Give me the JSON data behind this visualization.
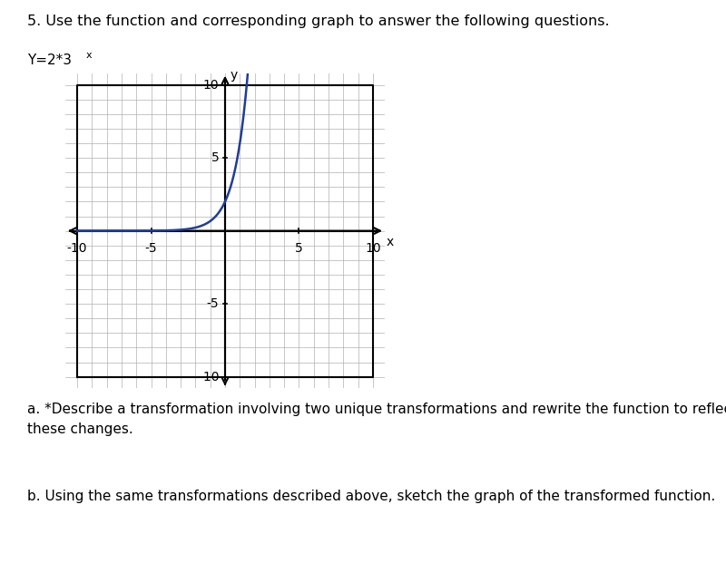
{
  "title_line": "5. Use the function and corresponding graph to answer the following questions.",
  "curve_color": "#1f3d99",
  "curve_linewidth": 1.8,
  "grid_color": "#b0b0b0",
  "grid_linewidth": 0.5,
  "axis_color": "#000000",
  "bg_color": "#ffffff",
  "xmin": -10,
  "xmax": 10,
  "ymin": -10,
  "ymax": 10,
  "xticks": [
    -10,
    -5,
    5,
    10
  ],
  "yticks": [
    -10,
    -5,
    5,
    10
  ],
  "xlabel": "x",
  "ylabel": "y",
  "text_a": "a. *Describe a transformation involving two unique transformations and rewrite the function to reflect\nthese changes.",
  "text_b": "b. Using the same transformations described above, sketch the graph of the transformed function.",
  "title_fontsize": 11.5,
  "label_fontsize": 11,
  "tick_fontsize": 10,
  "func_fontsize": 11,
  "sup_fontsize": 8
}
